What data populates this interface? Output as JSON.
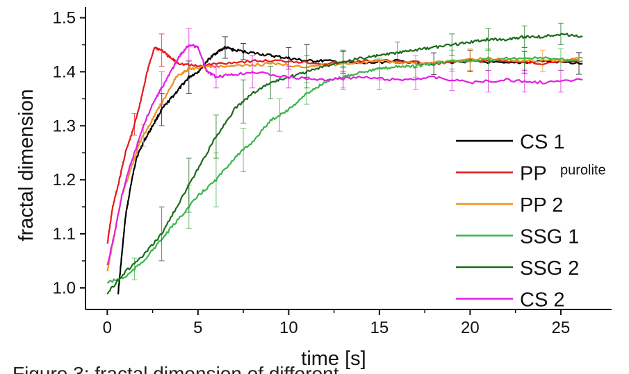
{
  "chart_data": {
    "type": "line",
    "xlabel": "time [s]",
    "ylabel": "fractal dimension",
    "xlim": [
      -1.2,
      27.8
    ],
    "ylim": [
      0.96,
      1.52
    ],
    "xticks": [
      0,
      5,
      10,
      15,
      20,
      25
    ],
    "yticks": [
      1.0,
      1.1,
      1.2,
      1.3,
      1.4,
      1.5
    ],
    "ytick_labels": [
      "1.0",
      "1.1",
      "1.2",
      "1.3",
      "1.4",
      "1.5"
    ],
    "grid": false,
    "legend_position": "right",
    "series": [
      {
        "name": "CS 1",
        "subscript": "",
        "color": "#000000",
        "points": [
          [
            0.6,
            0.99
          ],
          [
            0.8,
            1.06
          ],
          [
            1.0,
            1.13
          ],
          [
            1.3,
            1.19
          ],
          [
            1.6,
            1.24
          ],
          [
            2.0,
            1.27
          ],
          [
            2.5,
            1.3
          ],
          [
            3.0,
            1.33
          ],
          [
            3.5,
            1.35
          ],
          [
            4.0,
            1.37
          ],
          [
            4.5,
            1.39
          ],
          [
            5.0,
            1.4
          ],
          [
            5.5,
            1.42
          ],
          [
            6.0,
            1.435
          ],
          [
            6.5,
            1.445
          ],
          [
            7.0,
            1.44
          ],
          [
            8.0,
            1.435
          ],
          [
            9.0,
            1.43
          ],
          [
            10.0,
            1.425
          ],
          [
            11.0,
            1.42
          ],
          [
            12.0,
            1.42
          ],
          [
            14.0,
            1.415
          ],
          [
            16.0,
            1.42
          ],
          [
            18.0,
            1.415
          ],
          [
            20.0,
            1.42
          ],
          [
            22.0,
            1.415
          ],
          [
            24.0,
            1.42
          ],
          [
            26.2,
            1.415
          ]
        ],
        "error_bars": [
          [
            3.0,
            0.03
          ],
          [
            4.5,
            0.03
          ],
          [
            6.5,
            0.02
          ],
          [
            7.5,
            0.015
          ],
          [
            10.0,
            0.02
          ],
          [
            11.0,
            0.03
          ],
          [
            13.0,
            0.02
          ],
          [
            18.0,
            0.02
          ],
          [
            20.0,
            0.02
          ],
          [
            23.0,
            0.02
          ],
          [
            26.0,
            0.02
          ]
        ]
      },
      {
        "name": "PP",
        "subscript": "purolite",
        "color": "#e31a1a",
        "points": [
          [
            0.0,
            1.08
          ],
          [
            0.3,
            1.15
          ],
          [
            0.6,
            1.19
          ],
          [
            1.0,
            1.25
          ],
          [
            1.4,
            1.29
          ],
          [
            1.8,
            1.34
          ],
          [
            2.2,
            1.4
          ],
          [
            2.6,
            1.445
          ],
          [
            3.0,
            1.44
          ],
          [
            3.5,
            1.425
          ],
          [
            4.0,
            1.415
          ],
          [
            5.0,
            1.41
          ],
          [
            6.0,
            1.415
          ],
          [
            8.0,
            1.42
          ],
          [
            10.0,
            1.42
          ],
          [
            12.0,
            1.415
          ],
          [
            14.0,
            1.42
          ],
          [
            16.0,
            1.42
          ],
          [
            18.0,
            1.415
          ],
          [
            20.0,
            1.42
          ],
          [
            22.0,
            1.42
          ],
          [
            24.0,
            1.415
          ],
          [
            26.2,
            1.42
          ]
        ],
        "error_bars": [
          [
            1.5,
            0.02
          ],
          [
            3.0,
            0.03
          ]
        ]
      },
      {
        "name": "PP 2",
        "subscript": "",
        "color": "#f0901e",
        "points": [
          [
            0.0,
            1.03
          ],
          [
            0.4,
            1.1
          ],
          [
            0.8,
            1.17
          ],
          [
            1.3,
            1.22
          ],
          [
            1.8,
            1.27
          ],
          [
            2.3,
            1.3
          ],
          [
            2.8,
            1.33
          ],
          [
            3.3,
            1.36
          ],
          [
            3.8,
            1.39
          ],
          [
            4.5,
            1.405
          ],
          [
            5.5,
            1.41
          ],
          [
            7.0,
            1.41
          ],
          [
            9.0,
            1.415
          ],
          [
            11.0,
            1.41
          ],
          [
            13.0,
            1.415
          ],
          [
            15.0,
            1.42
          ],
          [
            17.0,
            1.415
          ],
          [
            19.0,
            1.42
          ],
          [
            21.0,
            1.425
          ],
          [
            23.0,
            1.42
          ],
          [
            25.0,
            1.42
          ],
          [
            26.2,
            1.425
          ]
        ],
        "error_bars": [
          [
            2.0,
            0.02
          ],
          [
            20.0,
            0.02
          ],
          [
            24.0,
            0.02
          ]
        ]
      },
      {
        "name": "SSG 1",
        "subscript": "",
        "color": "#3cb44b",
        "points": [
          [
            0.0,
            1.01
          ],
          [
            1.0,
            1.02
          ],
          [
            2.0,
            1.05
          ],
          [
            3.0,
            1.09
          ],
          [
            4.0,
            1.13
          ],
          [
            5.0,
            1.17
          ],
          [
            6.0,
            1.2
          ],
          [
            7.0,
            1.24
          ],
          [
            8.0,
            1.27
          ],
          [
            9.0,
            1.31
          ],
          [
            10.0,
            1.33
          ],
          [
            11.0,
            1.36
          ],
          [
            12.0,
            1.38
          ],
          [
            13.0,
            1.39
          ],
          [
            14.0,
            1.4
          ],
          [
            15.0,
            1.405
          ],
          [
            16.0,
            1.41
          ],
          [
            17.0,
            1.41
          ],
          [
            18.0,
            1.415
          ],
          [
            19.0,
            1.42
          ],
          [
            20.0,
            1.42
          ],
          [
            22.0,
            1.425
          ],
          [
            24.0,
            1.425
          ],
          [
            26.2,
            1.42
          ]
        ],
        "error_bars": [
          [
            1.5,
            0.02
          ],
          [
            4.5,
            0.04
          ],
          [
            6.0,
            0.05
          ],
          [
            7.5,
            0.04
          ],
          [
            9.5,
            0.03
          ],
          [
            11.0,
            0.02
          ],
          [
            13.0,
            0.02
          ],
          [
            15.0,
            0.02
          ],
          [
            17.0,
            0.02
          ],
          [
            19.0,
            0.02
          ],
          [
            21.0,
            0.02
          ],
          [
            23.0,
            0.02
          ],
          [
            25.0,
            0.02
          ]
        ]
      },
      {
        "name": "SSG 2",
        "subscript": "",
        "color": "#1a6b1a",
        "points": [
          [
            0.0,
            0.99
          ],
          [
            1.0,
            1.03
          ],
          [
            2.0,
            1.06
          ],
          [
            3.0,
            1.1
          ],
          [
            4.0,
            1.16
          ],
          [
            5.0,
            1.22
          ],
          [
            6.0,
            1.28
          ],
          [
            7.0,
            1.33
          ],
          [
            8.0,
            1.36
          ],
          [
            9.0,
            1.38
          ],
          [
            10.0,
            1.39
          ],
          [
            11.0,
            1.4
          ],
          [
            12.0,
            1.41
          ],
          [
            13.0,
            1.42
          ],
          [
            14.0,
            1.425
          ],
          [
            15.0,
            1.43
          ],
          [
            16.0,
            1.435
          ],
          [
            17.0,
            1.44
          ],
          [
            18.0,
            1.445
          ],
          [
            19.0,
            1.45
          ],
          [
            20.0,
            1.455
          ],
          [
            21.0,
            1.46
          ],
          [
            22.0,
            1.46
          ],
          [
            23.0,
            1.465
          ],
          [
            24.0,
            1.465
          ],
          [
            25.0,
            1.47
          ],
          [
            26.2,
            1.465
          ]
        ],
        "error_bars": [
          [
            3.0,
            0.05
          ],
          [
            4.5,
            0.05
          ],
          [
            6.0,
            0.04
          ],
          [
            7.5,
            0.04
          ],
          [
            9.0,
            0.03
          ],
          [
            11.0,
            0.03
          ],
          [
            13.0,
            0.02
          ],
          [
            16.0,
            0.02
          ],
          [
            19.0,
            0.02
          ],
          [
            21.0,
            0.02
          ],
          [
            23.0,
            0.02
          ],
          [
            25.0,
            0.02
          ]
        ]
      },
      {
        "name": "CS 2",
        "subscript": "",
        "color": "#e020e0",
        "points": [
          [
            0.0,
            1.04
          ],
          [
            0.4,
            1.1
          ],
          [
            0.8,
            1.17
          ],
          [
            1.2,
            1.22
          ],
          [
            1.6,
            1.26
          ],
          [
            2.0,
            1.3
          ],
          [
            2.5,
            1.34
          ],
          [
            3.0,
            1.37
          ],
          [
            3.5,
            1.4
          ],
          [
            4.0,
            1.43
          ],
          [
            4.5,
            1.45
          ],
          [
            5.0,
            1.445
          ],
          [
            5.5,
            1.4
          ],
          [
            6.0,
            1.39
          ],
          [
            7.0,
            1.395
          ],
          [
            8.0,
            1.4
          ],
          [
            10.0,
            1.39
          ],
          [
            12.0,
            1.385
          ],
          [
            14.0,
            1.39
          ],
          [
            16.0,
            1.385
          ],
          [
            18.0,
            1.39
          ],
          [
            20.0,
            1.38
          ],
          [
            22.0,
            1.385
          ],
          [
            24.0,
            1.38
          ],
          [
            26.2,
            1.385
          ]
        ],
        "error_bars": [
          [
            3.0,
            0.03
          ],
          [
            4.5,
            0.03
          ],
          [
            6.0,
            0.02
          ],
          [
            8.0,
            0.03
          ],
          [
            10.0,
            0.02
          ],
          [
            13.0,
            0.02
          ],
          [
            15.0,
            0.02
          ],
          [
            17.0,
            0.02
          ],
          [
            19.0,
            0.02
          ],
          [
            21.0,
            0.02
          ],
          [
            23.0,
            0.02
          ],
          [
            25.0,
            0.02
          ]
        ]
      }
    ]
  },
  "caption": "Figure 3: fractal dimension of different..."
}
